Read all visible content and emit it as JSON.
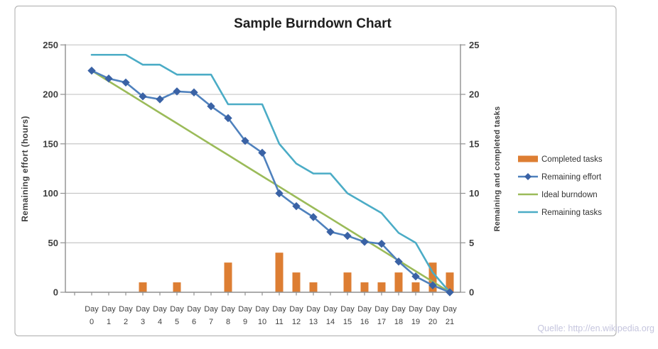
{
  "source_note": "Quelle: http://en.wikipedia.org",
  "chart_data": {
    "type": "combo-bar-line",
    "title": "Sample Burndown Chart",
    "categories": [
      "Day 0",
      "Day 1",
      "Day 2",
      "Day 3",
      "Day 4",
      "Day 5",
      "Day 6",
      "Day 7",
      "Day 8",
      "Day 9",
      "Day 10",
      "Day 11",
      "Day 12",
      "Day 13",
      "Day 14",
      "Day 15",
      "Day 16",
      "Day 17",
      "Day 18",
      "Day 19",
      "Day 20",
      "Day 21"
    ],
    "left_axis": {
      "label": "Remaining effort (hours)",
      "min": 0,
      "max": 250,
      "ticks": [
        0,
        50,
        100,
        150,
        200,
        250
      ]
    },
    "right_axis": {
      "label": "Remaining and completed tasks",
      "min": 0,
      "max": 25,
      "ticks": [
        0,
        5,
        10,
        15,
        20,
        25
      ]
    },
    "grid": true,
    "legend_position": "right",
    "series": [
      {
        "name": "Completed tasks",
        "type": "bar",
        "axis": "right",
        "color": "#DD7E33",
        "values": [
          0,
          0,
          0,
          1,
          0,
          1,
          0,
          0,
          3,
          0,
          0,
          4,
          2,
          1,
          0,
          2,
          1,
          1,
          2,
          1,
          3,
          2
        ]
      },
      {
        "name": "Remaining effort",
        "type": "line-diamond",
        "axis": "left",
        "color": "#4F81BD",
        "marker_color": "#3A62A5",
        "values": [
          224,
          216,
          212,
          198,
          195,
          203,
          202,
          188,
          176,
          153,
          141,
          100,
          87,
          76,
          61,
          57,
          51,
          49,
          31,
          16,
          7,
          0
        ]
      },
      {
        "name": "Ideal burndown",
        "type": "line",
        "axis": "left",
        "color": "#9BBB59",
        "values": [
          224,
          213.3,
          202.7,
          192,
          181.3,
          170.7,
          160,
          149.3,
          138.7,
          128,
          117.3,
          106.7,
          96,
          85.3,
          74.7,
          64,
          53.3,
          42.7,
          32,
          21.3,
          10.7,
          0
        ]
      },
      {
        "name": "Remaining tasks",
        "type": "line",
        "axis": "right",
        "color": "#4BACC6",
        "values": [
          24,
          24,
          24,
          23,
          23,
          22,
          22,
          22,
          19,
          19,
          19,
          15,
          13,
          12,
          12,
          10,
          9,
          8,
          6,
          5,
          2,
          0
        ]
      }
    ],
    "colors": {
      "gridline": "#C6C6C6",
      "axis_line": "#8F8F8F",
      "text": "#3F3F3F"
    }
  }
}
